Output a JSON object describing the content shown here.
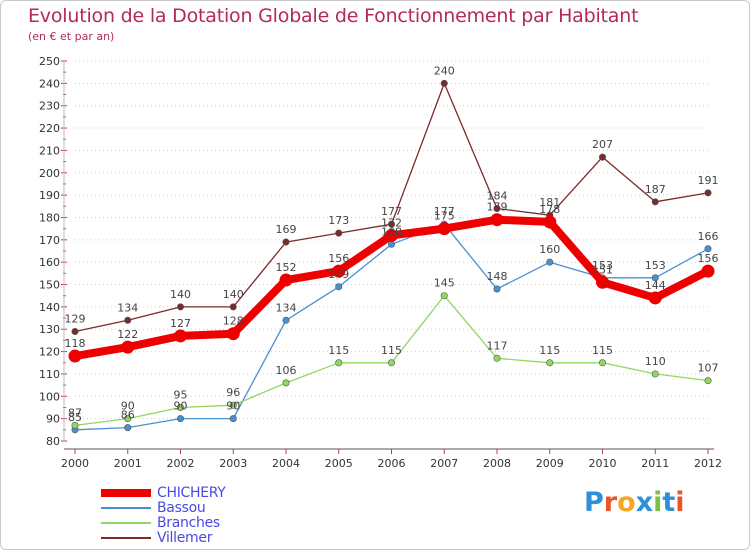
{
  "title": "Evolution de la Dotation Globale de Fonctionnement par Habitant",
  "subtitle": "(en € et par an)",
  "brand": {
    "text": "Proxiti",
    "letter_colors": [
      "#2f8fd8",
      "#e8572a",
      "#f5a623",
      "#2f8fd8",
      "#7bc043",
      "#2f8fd8",
      "#e8572a"
    ]
  },
  "chart_data": {
    "type": "line",
    "title": "Evolution de la Dotation Globale de Fonctionnement par Habitant",
    "subtitle": "(en € et par an)",
    "xlabel": "",
    "ylabel": "",
    "ylim": [
      80,
      250
    ],
    "yticks": [
      80,
      90,
      100,
      110,
      120,
      130,
      140,
      150,
      160,
      170,
      180,
      190,
      200,
      210,
      220,
      230,
      240,
      250
    ],
    "categories": [
      "2000",
      "2001",
      "2002",
      "2003",
      "2004",
      "2005",
      "2006",
      "2007",
      "2008",
      "2009",
      "2010",
      "2011",
      "2012"
    ],
    "grid": "horizontal-dotted",
    "legend_position": "bottom-left",
    "series": [
      {
        "name": "CHICHERY",
        "color": "#ee0000",
        "emphasis": true,
        "values": [
          118,
          122,
          127,
          128,
          152,
          156,
          172,
          175,
          179,
          178,
          151,
          144,
          156
        ]
      },
      {
        "name": "Bassou",
        "color": "#4a8fd0",
        "emphasis": false,
        "values": [
          85,
          86,
          90,
          90,
          134,
          149,
          168,
          177,
          148,
          160,
          153,
          153,
          166
        ]
      },
      {
        "name": "Branches",
        "color": "#90d860",
        "emphasis": false,
        "values": [
          87,
          90,
          95,
          96,
          106,
          115,
          115,
          145,
          117,
          115,
          115,
          110,
          107
        ]
      },
      {
        "name": "Villemer",
        "color": "#7a2a2a",
        "emphasis": false,
        "values": [
          129,
          134,
          140,
          140,
          169,
          173,
          177,
          240,
          184,
          181,
          207,
          187,
          191
        ]
      }
    ]
  }
}
